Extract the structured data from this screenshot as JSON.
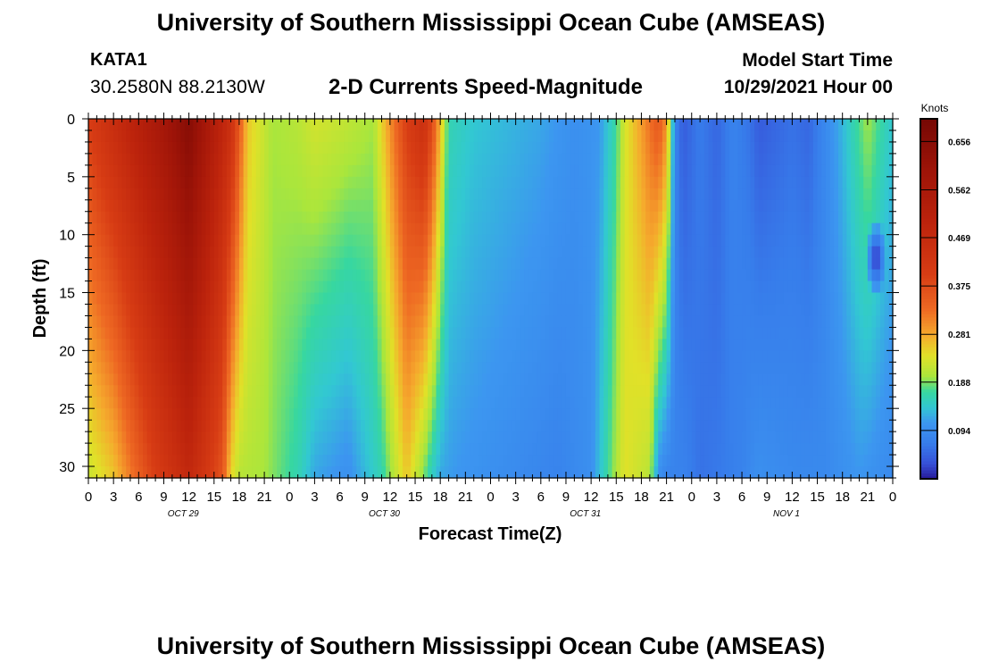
{
  "header": {
    "title": "University of Southern Mississippi Ocean Cube (AMSEAS)",
    "station": "KATA1",
    "coordinates": "30.2580N  88.2130W",
    "subtitle": "2-D Currents Speed-Magnitude",
    "model_start_label": "Model Start Time",
    "model_start_value": "10/29/2021 Hour 00"
  },
  "footer": {
    "title": "University of Southern Mississippi Ocean Cube (AMSEAS)"
  },
  "chart_data": {
    "type": "heatmap",
    "title": "2-D Currents Speed-Magnitude",
    "xlabel": "Forecast Time(Z)",
    "ylabel": "Depth (ft)",
    "x_range_hours": [
      0,
      96
    ],
    "ylim": [
      0,
      31
    ],
    "y_inverted": true,
    "x_ticks": [
      "0",
      "3",
      "6",
      "9",
      "12",
      "15",
      "18",
      "21",
      "0",
      "3",
      "6",
      "9",
      "12",
      "15",
      "18",
      "21",
      "0",
      "3",
      "6",
      "9",
      "12",
      "15",
      "18",
      "21",
      "0",
      "3",
      "6",
      "9",
      "12",
      "15",
      "18",
      "21",
      "0"
    ],
    "y_ticks": [
      "0",
      "5",
      "10",
      "15",
      "20",
      "25",
      "30"
    ],
    "y_tick_values": [
      0,
      5,
      10,
      15,
      20,
      25,
      30
    ],
    "day_labels": [
      {
        "label": "OCT 29",
        "hour": 11
      },
      {
        "label": "OCT 30",
        "hour": 35
      },
      {
        "label": "OCT 31",
        "hour": 59
      },
      {
        "label": "NOV 1",
        "hour": 83
      }
    ],
    "colorbar": {
      "unit": "Knots",
      "ticks": [
        "0.656",
        "0.562",
        "0.469",
        "0.375",
        "0.281",
        "0.188",
        "0.094"
      ],
      "tick_values": [
        0.656,
        0.562,
        0.469,
        0.375,
        0.281,
        0.188,
        0.094
      ],
      "range": [
        0.0,
        0.7
      ]
    },
    "surface_speed_by_hour": {
      "hours": [
        0,
        6,
        9,
        12,
        17,
        19,
        22,
        25,
        27,
        30,
        34,
        38,
        40,
        41,
        43,
        46,
        50,
        54,
        58,
        61,
        63,
        64,
        66,
        68,
        69,
        70,
        71,
        73,
        75,
        77,
        79,
        80,
        84,
        86,
        90,
        93,
        96
      ],
      "values": [
        0.4,
        0.52,
        0.58,
        0.66,
        0.45,
        0.26,
        0.2,
        0.21,
        0.23,
        0.22,
        0.2,
        0.4,
        0.45,
        0.38,
        0.16,
        0.14,
        0.13,
        0.12,
        0.1,
        0.11,
        0.17,
        0.23,
        0.29,
        0.36,
        0.3,
        0.08,
        0.04,
        0.07,
        0.05,
        0.08,
        0.06,
        0.04,
        0.06,
        0.05,
        0.13,
        0.2,
        0.14
      ]
    },
    "bottom_speed_by_hour": {
      "hours": [
        0,
        3,
        8,
        12,
        16,
        17,
        18,
        21,
        25,
        27,
        31,
        35,
        38,
        41,
        42,
        44,
        48,
        52,
        56,
        60,
        62,
        64,
        67,
        68,
        69,
        71,
        73,
        76,
        78,
        80,
        84,
        88,
        92,
        94,
        96
      ],
      "values": [
        0.22,
        0.26,
        0.4,
        0.48,
        0.36,
        0.25,
        0.21,
        0.2,
        0.16,
        0.12,
        0.1,
        0.16,
        0.26,
        0.15,
        0.12,
        0.11,
        0.1,
        0.09,
        0.08,
        0.1,
        0.17,
        0.24,
        0.21,
        0.1,
        0.08,
        0.08,
        0.06,
        0.07,
        0.08,
        0.1,
        0.09,
        0.09,
        0.11,
        0.1,
        0.09
      ]
    },
    "local_minimum": {
      "hour": 94,
      "depth_ft": 12,
      "value": 0.0
    }
  }
}
